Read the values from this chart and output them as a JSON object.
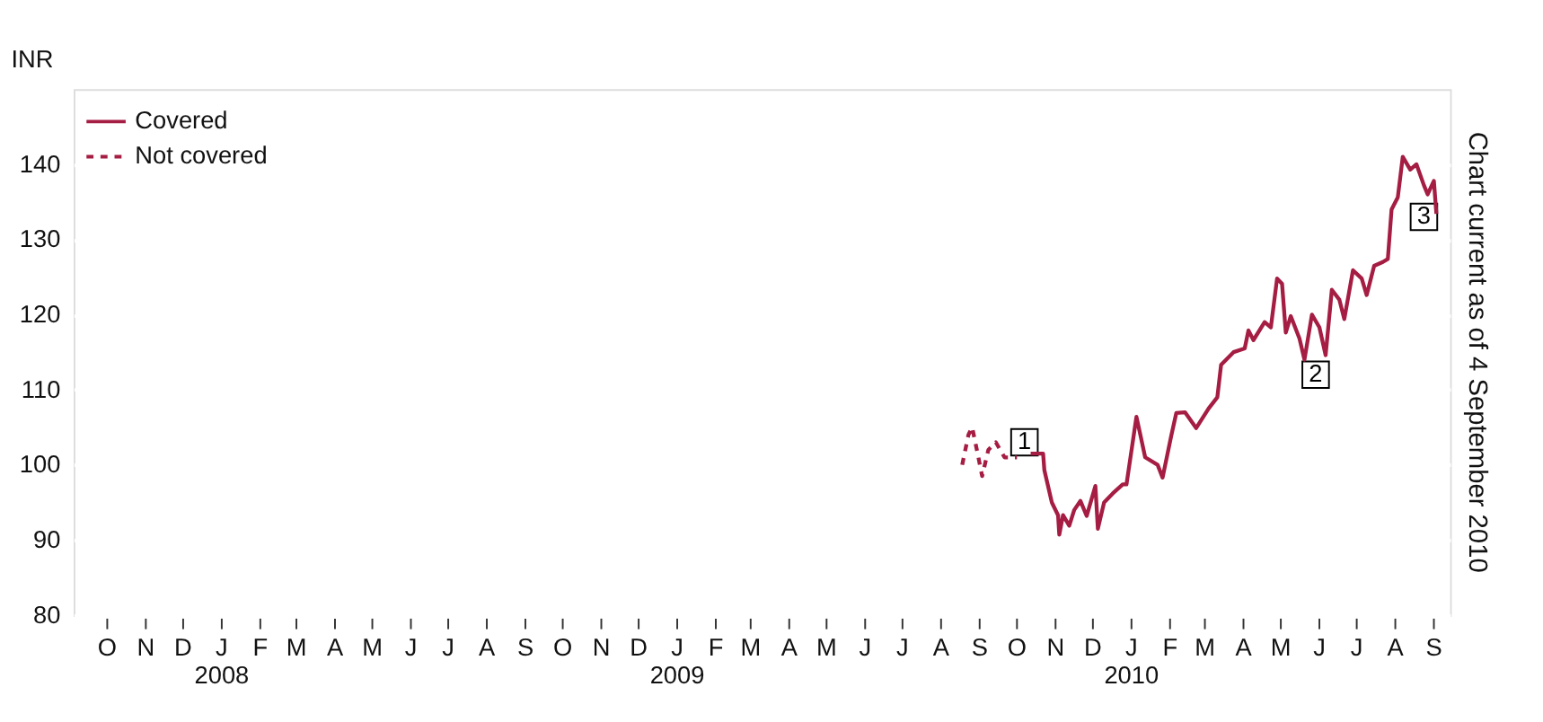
{
  "chart_data": {
    "type": "line",
    "ylabel": "INR",
    "xlim": [
      "2007-09-04",
      "2010-09-14"
    ],
    "ylim": [
      80,
      150
    ],
    "yticks": [
      80,
      90,
      100,
      110,
      120,
      130,
      140
    ],
    "xticks": [
      {
        "value": "2007-10-01",
        "label": "O"
      },
      {
        "value": "2007-11-01",
        "label": "N"
      },
      {
        "value": "2007-12-01",
        "label": "D"
      },
      {
        "value": "2008-01-01",
        "label": "J\n2008"
      },
      {
        "value": "2008-02-01",
        "label": "F"
      },
      {
        "value": "2008-03-01",
        "label": "M"
      },
      {
        "value": "2008-04-01",
        "label": "A"
      },
      {
        "value": "2008-05-01",
        "label": "M"
      },
      {
        "value": "2008-06-01",
        "label": "J"
      },
      {
        "value": "2008-07-01",
        "label": "J"
      },
      {
        "value": "2008-08-01",
        "label": "A"
      },
      {
        "value": "2008-09-01",
        "label": "S"
      },
      {
        "value": "2008-10-01",
        "label": "O"
      },
      {
        "value": "2008-11-01",
        "label": "N"
      },
      {
        "value": "2008-12-01",
        "label": "D"
      },
      {
        "value": "2009-01-01",
        "label": "J\n2009"
      },
      {
        "value": "2009-02-01",
        "label": "F"
      },
      {
        "value": "2009-03-01",
        "label": "M"
      },
      {
        "value": "2009-04-01",
        "label": "A"
      },
      {
        "value": "2009-05-01",
        "label": "M"
      },
      {
        "value": "2009-06-01",
        "label": "J"
      },
      {
        "value": "2009-07-01",
        "label": "J"
      },
      {
        "value": "2009-08-01",
        "label": "A"
      },
      {
        "value": "2009-09-01",
        "label": "S"
      },
      {
        "value": "2009-10-01",
        "label": "O"
      },
      {
        "value": "2009-11-01",
        "label": "N"
      },
      {
        "value": "2009-12-01",
        "label": "D"
      },
      {
        "value": "2010-01-01",
        "label": "J\n2010"
      },
      {
        "value": "2010-02-01",
        "label": "F"
      },
      {
        "value": "2010-03-01",
        "label": "M"
      },
      {
        "value": "2010-04-01",
        "label": "A"
      },
      {
        "value": "2010-05-01",
        "label": "M"
      },
      {
        "value": "2010-06-01",
        "label": "J"
      },
      {
        "value": "2010-07-01",
        "label": "J"
      },
      {
        "value": "2010-08-01",
        "label": "A"
      },
      {
        "value": "2010-09-01",
        "label": "S"
      }
    ],
    "series": [
      {
        "name": "Covered",
        "color": "#a51d42",
        "line_style": "solid",
        "x": [
          "2009-10-12",
          "2009-10-22",
          "2009-10-23",
          "2009-10-29",
          "2009-11-03",
          "2009-11-04",
          "2009-11-07",
          "2009-11-12",
          "2009-11-16",
          "2009-11-21",
          "2009-11-26",
          "2009-12-03",
          "2009-12-05",
          "2009-12-10",
          "2009-12-17",
          "2009-12-25",
          "2009-12-28",
          "2010-01-05",
          "2010-01-12",
          "2010-01-22",
          "2010-01-26",
          "2010-02-02",
          "2010-02-06",
          "2010-02-13",
          "2010-02-22",
          "2010-03-04",
          "2010-03-11",
          "2010-03-14",
          "2010-03-24",
          "2010-04-02",
          "2010-04-05",
          "2010-04-09",
          "2010-04-18",
          "2010-04-23",
          "2010-04-28",
          "2010-05-02",
          "2010-05-05",
          "2010-05-09",
          "2010-05-16",
          "2010-05-20",
          "2010-05-26",
          "2010-06-01",
          "2010-06-06",
          "2010-06-11",
          "2010-06-17",
          "2010-06-21",
          "2010-06-28",
          "2010-07-05",
          "2010-07-09",
          "2010-07-15",
          "2010-07-22",
          "2010-07-26",
          "2010-07-29",
          "2010-08-03",
          "2010-08-07",
          "2010-08-13",
          "2010-08-18",
          "2010-08-24",
          "2010-08-27",
          "2010-09-01",
          "2010-09-03"
        ],
        "values": [
          101.5,
          101.5,
          99.3,
          95,
          93.3,
          90.7,
          93.3,
          91.9,
          94,
          95.2,
          93.2,
          97.2,
          91.5,
          95,
          96.2,
          97.4,
          97.4,
          106.4,
          101,
          100,
          98.3,
          103.9,
          106.9,
          107,
          104.9,
          107.5,
          109,
          113.3,
          115,
          115.5,
          117.9,
          116.6,
          119,
          118.3,
          124.8,
          124.1,
          117.6,
          119.8,
          116.8,
          114,
          120,
          118.3,
          114.6,
          123.3,
          122,
          119.4,
          125.9,
          124.8,
          122.6,
          126.5,
          127,
          127.4,
          134,
          135.6,
          141,
          139.3,
          140,
          137.2,
          136,
          137.8,
          133.4
        ]
      },
      {
        "name": "Not covered",
        "color": "#a51d42",
        "line_style": "dashed",
        "x": [
          "2009-08-18",
          "2009-08-23",
          "2009-08-26",
          "2009-08-31",
          "2009-09-03",
          "2009-09-08",
          "2009-09-14",
          "2009-09-21",
          "2009-10-01"
        ],
        "values": [
          100,
          104,
          105,
          101,
          98.5,
          102,
          103,
          101,
          101
        ]
      }
    ],
    "grid": "y",
    "legend": "top left",
    "annotations": [
      {
        "text": "1",
        "x": "2009-10-07",
        "y": 103
      },
      {
        "text": "2",
        "x": "2010-05-29",
        "y": 112
      },
      {
        "text": "3",
        "x": "2010-08-24",
        "y": 133
      },
      "Chart current as of 4 September 2010"
    ]
  }
}
